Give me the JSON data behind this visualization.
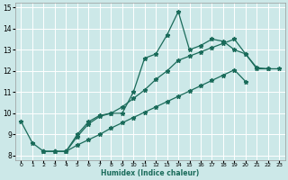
{
  "xlabel": "Humidex (Indice chaleur)",
  "xlim": [
    -0.5,
    23.5
  ],
  "ylim": [
    7.8,
    15.2
  ],
  "xticks": [
    0,
    1,
    2,
    3,
    4,
    5,
    6,
    7,
    8,
    9,
    10,
    11,
    12,
    13,
    14,
    15,
    16,
    17,
    18,
    19,
    20,
    21,
    22,
    23
  ],
  "yticks": [
    8,
    9,
    10,
    11,
    12,
    13,
    14,
    15
  ],
  "bg_color": "#cce8e8",
  "grid_color": "#ffffff",
  "line_color": "#1a6b5a",
  "line1_y": [
    9.6,
    8.6,
    8.2,
    8.2,
    8.2,
    9.0,
    9.6,
    9.9,
    10.0,
    10.0,
    11.0,
    12.6,
    12.8,
    13.7,
    14.8,
    13.0,
    13.2,
    13.5,
    13.4,
    13.0,
    12.8,
    12.1,
    12.1,
    null
  ],
  "line2_y": [
    null,
    null,
    8.2,
    8.2,
    8.2,
    8.9,
    9.5,
    9.85,
    10.0,
    10.3,
    10.7,
    11.1,
    11.6,
    12.0,
    12.5,
    12.7,
    12.9,
    13.1,
    13.3,
    13.5,
    12.8,
    12.15,
    12.1,
    12.1
  ],
  "line3_y": [
    null,
    null,
    8.2,
    8.2,
    8.2,
    8.5,
    8.75,
    9.0,
    9.3,
    9.55,
    9.8,
    10.05,
    10.3,
    10.55,
    10.8,
    11.05,
    11.3,
    11.55,
    11.8,
    12.05,
    11.5,
    null,
    null,
    null
  ]
}
